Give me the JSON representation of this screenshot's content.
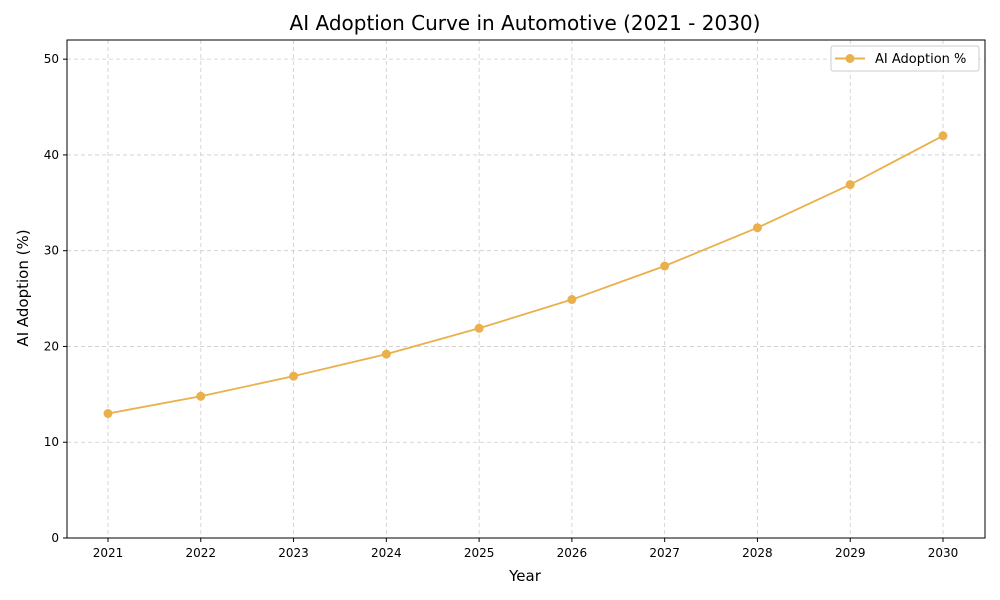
{
  "chart_data": {
    "type": "line",
    "title": "AI Adoption Curve in Automotive (2021 - 2030)",
    "xlabel": "Year",
    "ylabel": "AI Adoption (%)",
    "x": [
      "2021",
      "2022",
      "2023",
      "2024",
      "2025",
      "2026",
      "2027",
      "2028",
      "2029",
      "2030"
    ],
    "series": [
      {
        "name": "AI Adoption %",
        "values": [
          13.0,
          14.8,
          16.9,
          19.2,
          21.9,
          24.9,
          28.4,
          32.4,
          36.9,
          42.0
        ],
        "color": "#eab04b"
      }
    ],
    "ylim": [
      0,
      52
    ],
    "yticks": [
      "0",
      "10",
      "20",
      "30",
      "40",
      "50"
    ],
    "grid": true,
    "legend_position": "top-right"
  }
}
